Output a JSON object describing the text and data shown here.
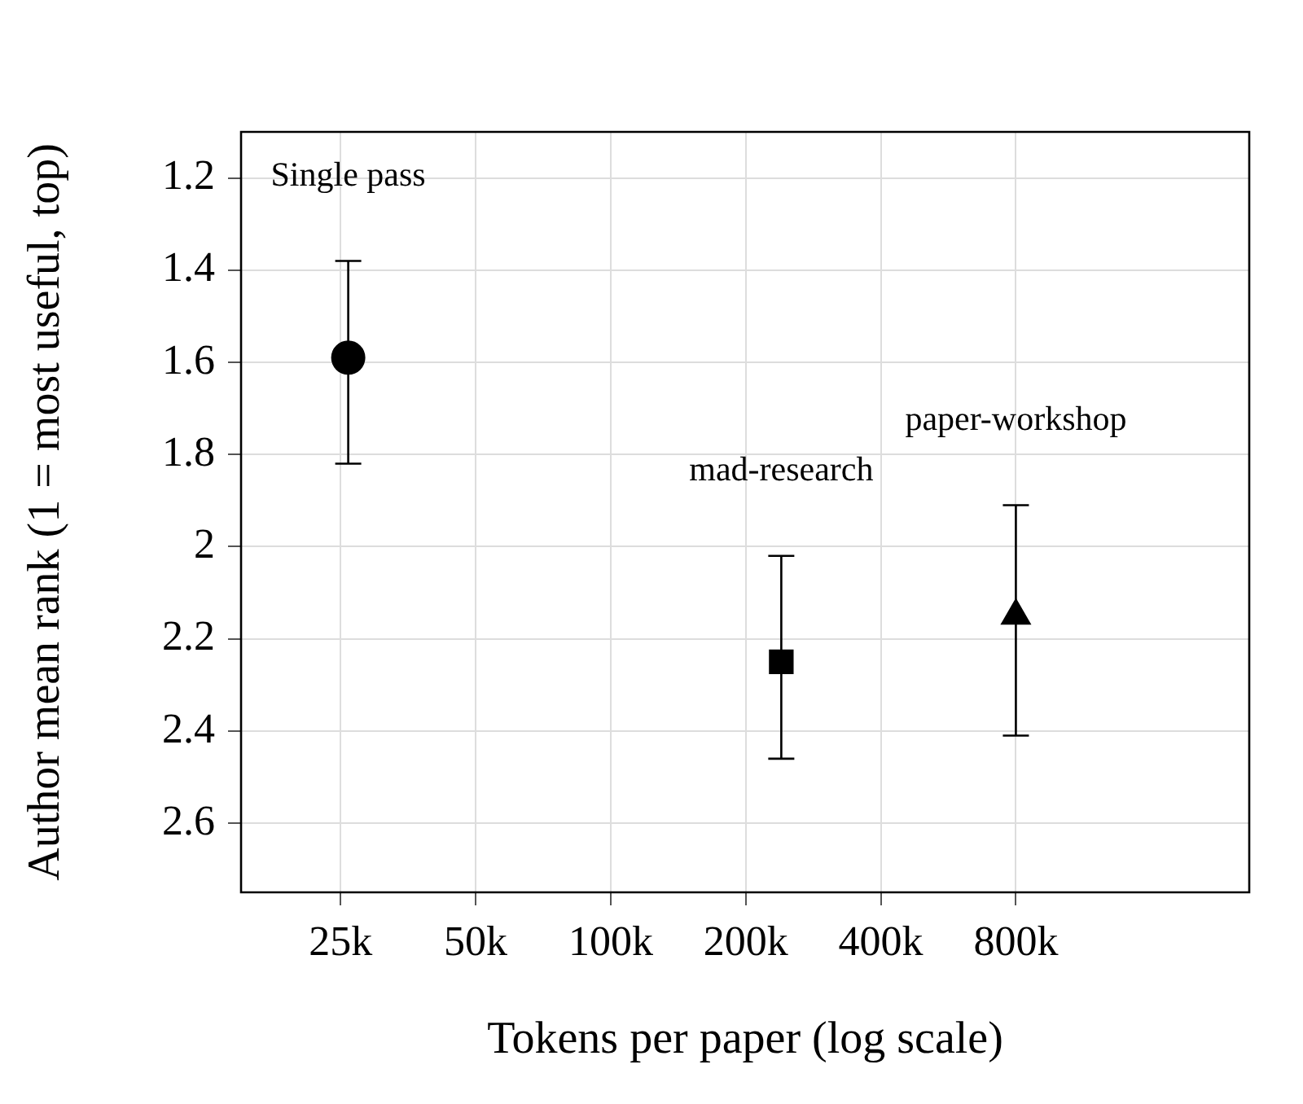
{
  "chart_data": {
    "type": "scatter",
    "xlabel": "Tokens per paper (log scale)",
    "ylabel": "Author mean rank (1 = most useful, top)",
    "log": "x",
    "grid": true,
    "xlim": [
      15000,
      2650000
    ],
    "xticks": [
      {
        "value": 25000,
        "label": "25k"
      },
      {
        "value": 50000,
        "label": "50k"
      },
      {
        "value": 100000,
        "label": "100k"
      },
      {
        "value": 200000,
        "label": "200k"
      },
      {
        "value": 400000,
        "label": "400k"
      },
      {
        "value": 800000,
        "label": "800k"
      }
    ],
    "ylim": [
      2.75,
      1.1
    ],
    "yticks": [
      1.2,
      1.4,
      1.6,
      1.8,
      2,
      2.2,
      2.4,
      2.6
    ],
    "series": [
      {
        "color": "#000000",
        "marker": "circle",
        "x": [
          26000
        ],
        "values": [
          1.59
        ],
        "errors": [
          [
            1.38,
            1.82
          ]
        ]
      },
      {
        "color": "#000000",
        "marker": "square",
        "x": [
          240000
        ],
        "values": [
          2.25
        ],
        "errors": [
          [
            2.02,
            2.46
          ]
        ]
      },
      {
        "color": "#000000",
        "marker": "triangle",
        "x": [
          800000
        ],
        "values": [
          2.15
        ],
        "errors": [
          [
            1.91,
            2.41
          ]
        ]
      }
    ],
    "annotations": [
      "Single pass",
      "mad-research",
      "paper-workshop"
    ]
  }
}
